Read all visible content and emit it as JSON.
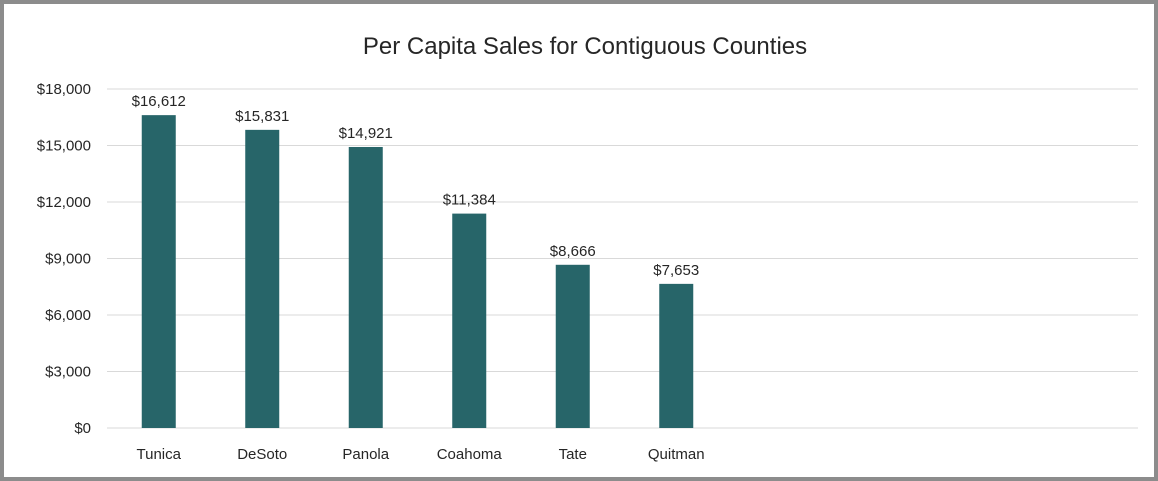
{
  "chart_data": {
    "type": "bar",
    "title": "Per Capita Sales for Contiguous Counties",
    "xlabel": "",
    "ylabel": "",
    "categories": [
      "Tunica",
      "DeSoto",
      "Panola",
      "Coahoma",
      "Tate",
      "Quitman"
    ],
    "values": [
      16612,
      15831,
      14921,
      11384,
      8666,
      7653
    ],
    "data_labels": [
      "$16,612",
      "$15,831",
      "$14,921",
      "$11,384",
      "$8,666",
      "$7,653"
    ],
    "ylim": [
      0,
      18000
    ],
    "yticks": [
      0,
      3000,
      6000,
      9000,
      12000,
      15000,
      18000
    ],
    "ytick_labels": [
      "$0",
      "$3,000",
      "$6,000",
      "$9,000",
      "$12,000",
      "$15,000",
      "$18,000"
    ],
    "grid": true,
    "legend": "none",
    "bar_color": "#276569"
  }
}
